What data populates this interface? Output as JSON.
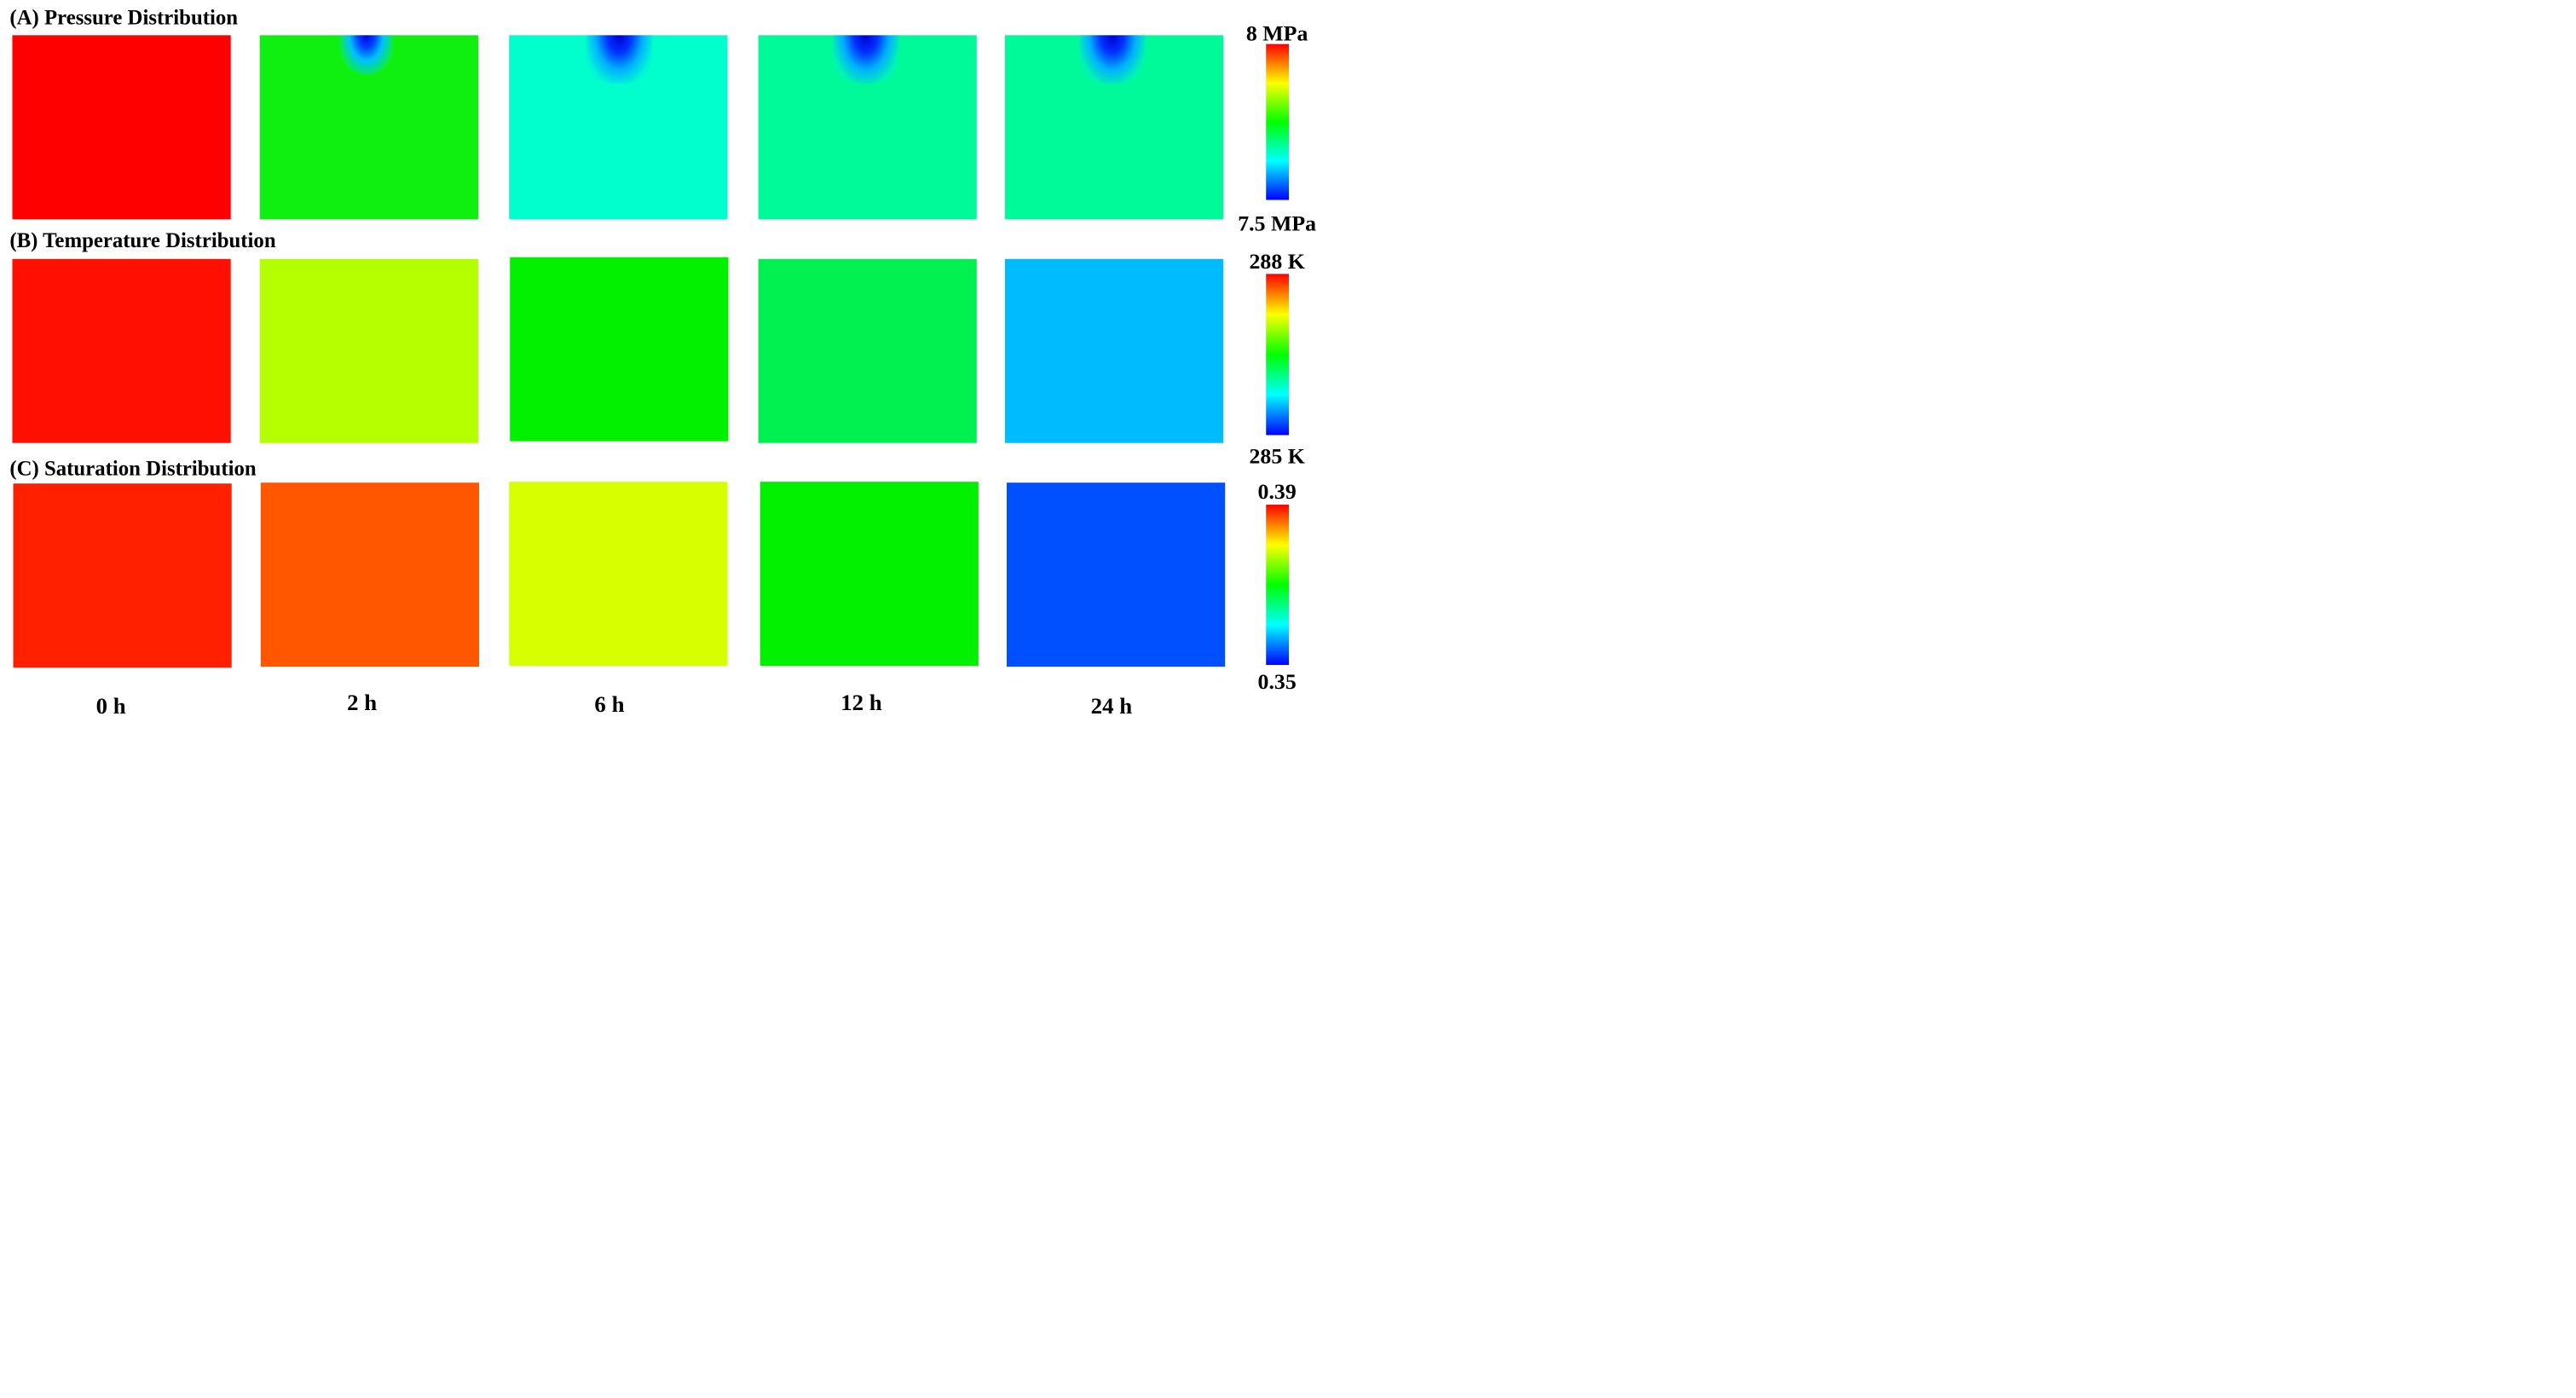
{
  "rows": [
    {
      "title": "(A) Pressure Distribution",
      "colorbar": {
        "max_label": "8 MPa",
        "min_label": "7.5 MPa"
      },
      "panel_colors": [
        "#ff0000",
        "#10f010",
        "#00ffcc",
        "#00fa99",
        "#00fa99"
      ]
    },
    {
      "title": "(B) Temperature Distribution",
      "colorbar": {
        "max_label": "288 K",
        "min_label": "285 K"
      },
      "panel_colors": [
        "#ff1000",
        "#b4ff00",
        "#00f000",
        "#00f050",
        "#00bcff"
      ]
    },
    {
      "title": "(C) Saturation Distribution",
      "colorbar": {
        "max_label": "0.39",
        "min_label": "0.35"
      },
      "panel_colors": [
        "#ff2000",
        "#ff5600",
        "#d8ff00",
        "#00f000",
        "#0050ff"
      ]
    }
  ],
  "time_labels": [
    "0 h",
    "2 h",
    "6 h",
    "12 h",
    "24 h"
  ],
  "colormap": [
    "#0000ff",
    "#00ffff",
    "#00ff00",
    "#ffff00",
    "#ff0000"
  ]
}
